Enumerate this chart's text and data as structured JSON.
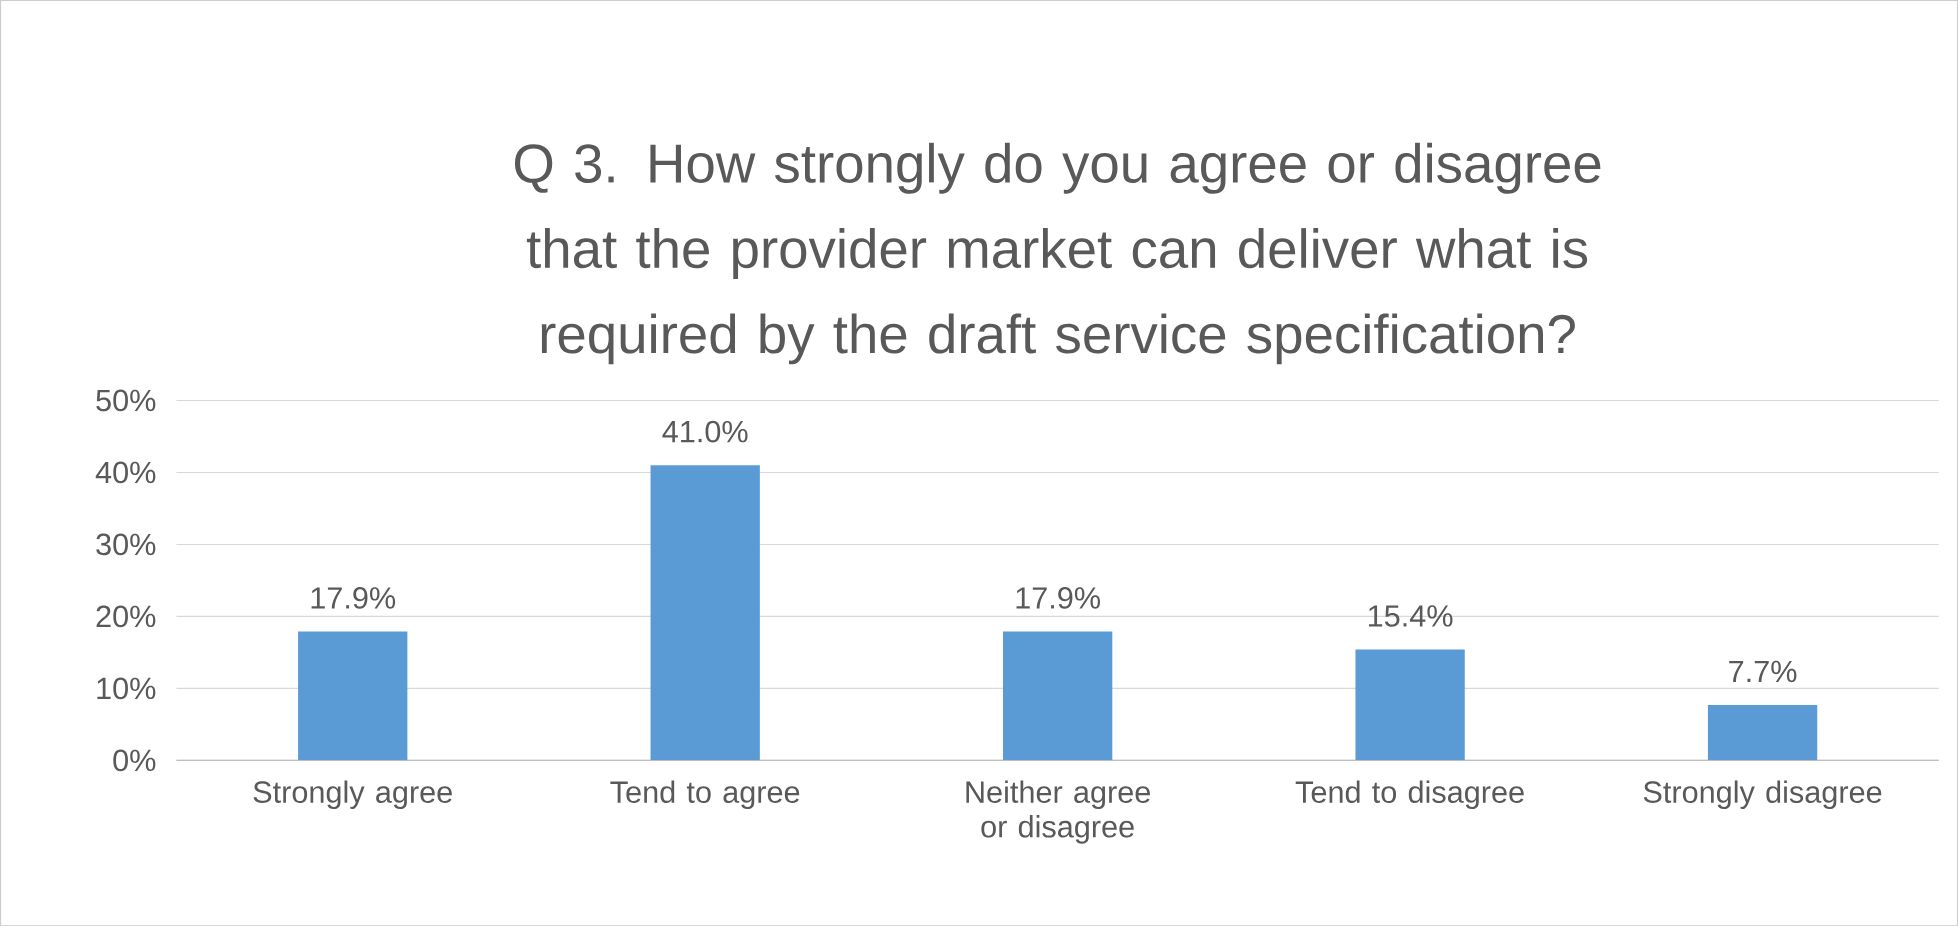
{
  "chart_data": {
    "type": "bar",
    "title": "Q 3. How strongly do you agree or disagree that the provider market can deliver what is required by the draft service specification?",
    "categories": [
      "Strongly agree",
      "Tend to agree",
      "Neither agree or disagree",
      "Tend to disagree",
      "Strongly disagree"
    ],
    "values": [
      17.9,
      41.0,
      17.9,
      15.4,
      7.7
    ],
    "value_labels": [
      "17.9%",
      "41.0%",
      "17.9%",
      "15.4%",
      "7.7%"
    ],
    "color": "#5b9bd5",
    "ylim": [
      0,
      50
    ],
    "yticks": [
      {
        "value": 0,
        "label": "0%"
      },
      {
        "value": 10,
        "label": "10%"
      },
      {
        "value": 20,
        "label": "20%"
      },
      {
        "value": 30,
        "label": "30%"
      },
      {
        "value": 40,
        "label": "40%"
      },
      {
        "value": 50,
        "label": "50%"
      }
    ],
    "grid": "y"
  }
}
